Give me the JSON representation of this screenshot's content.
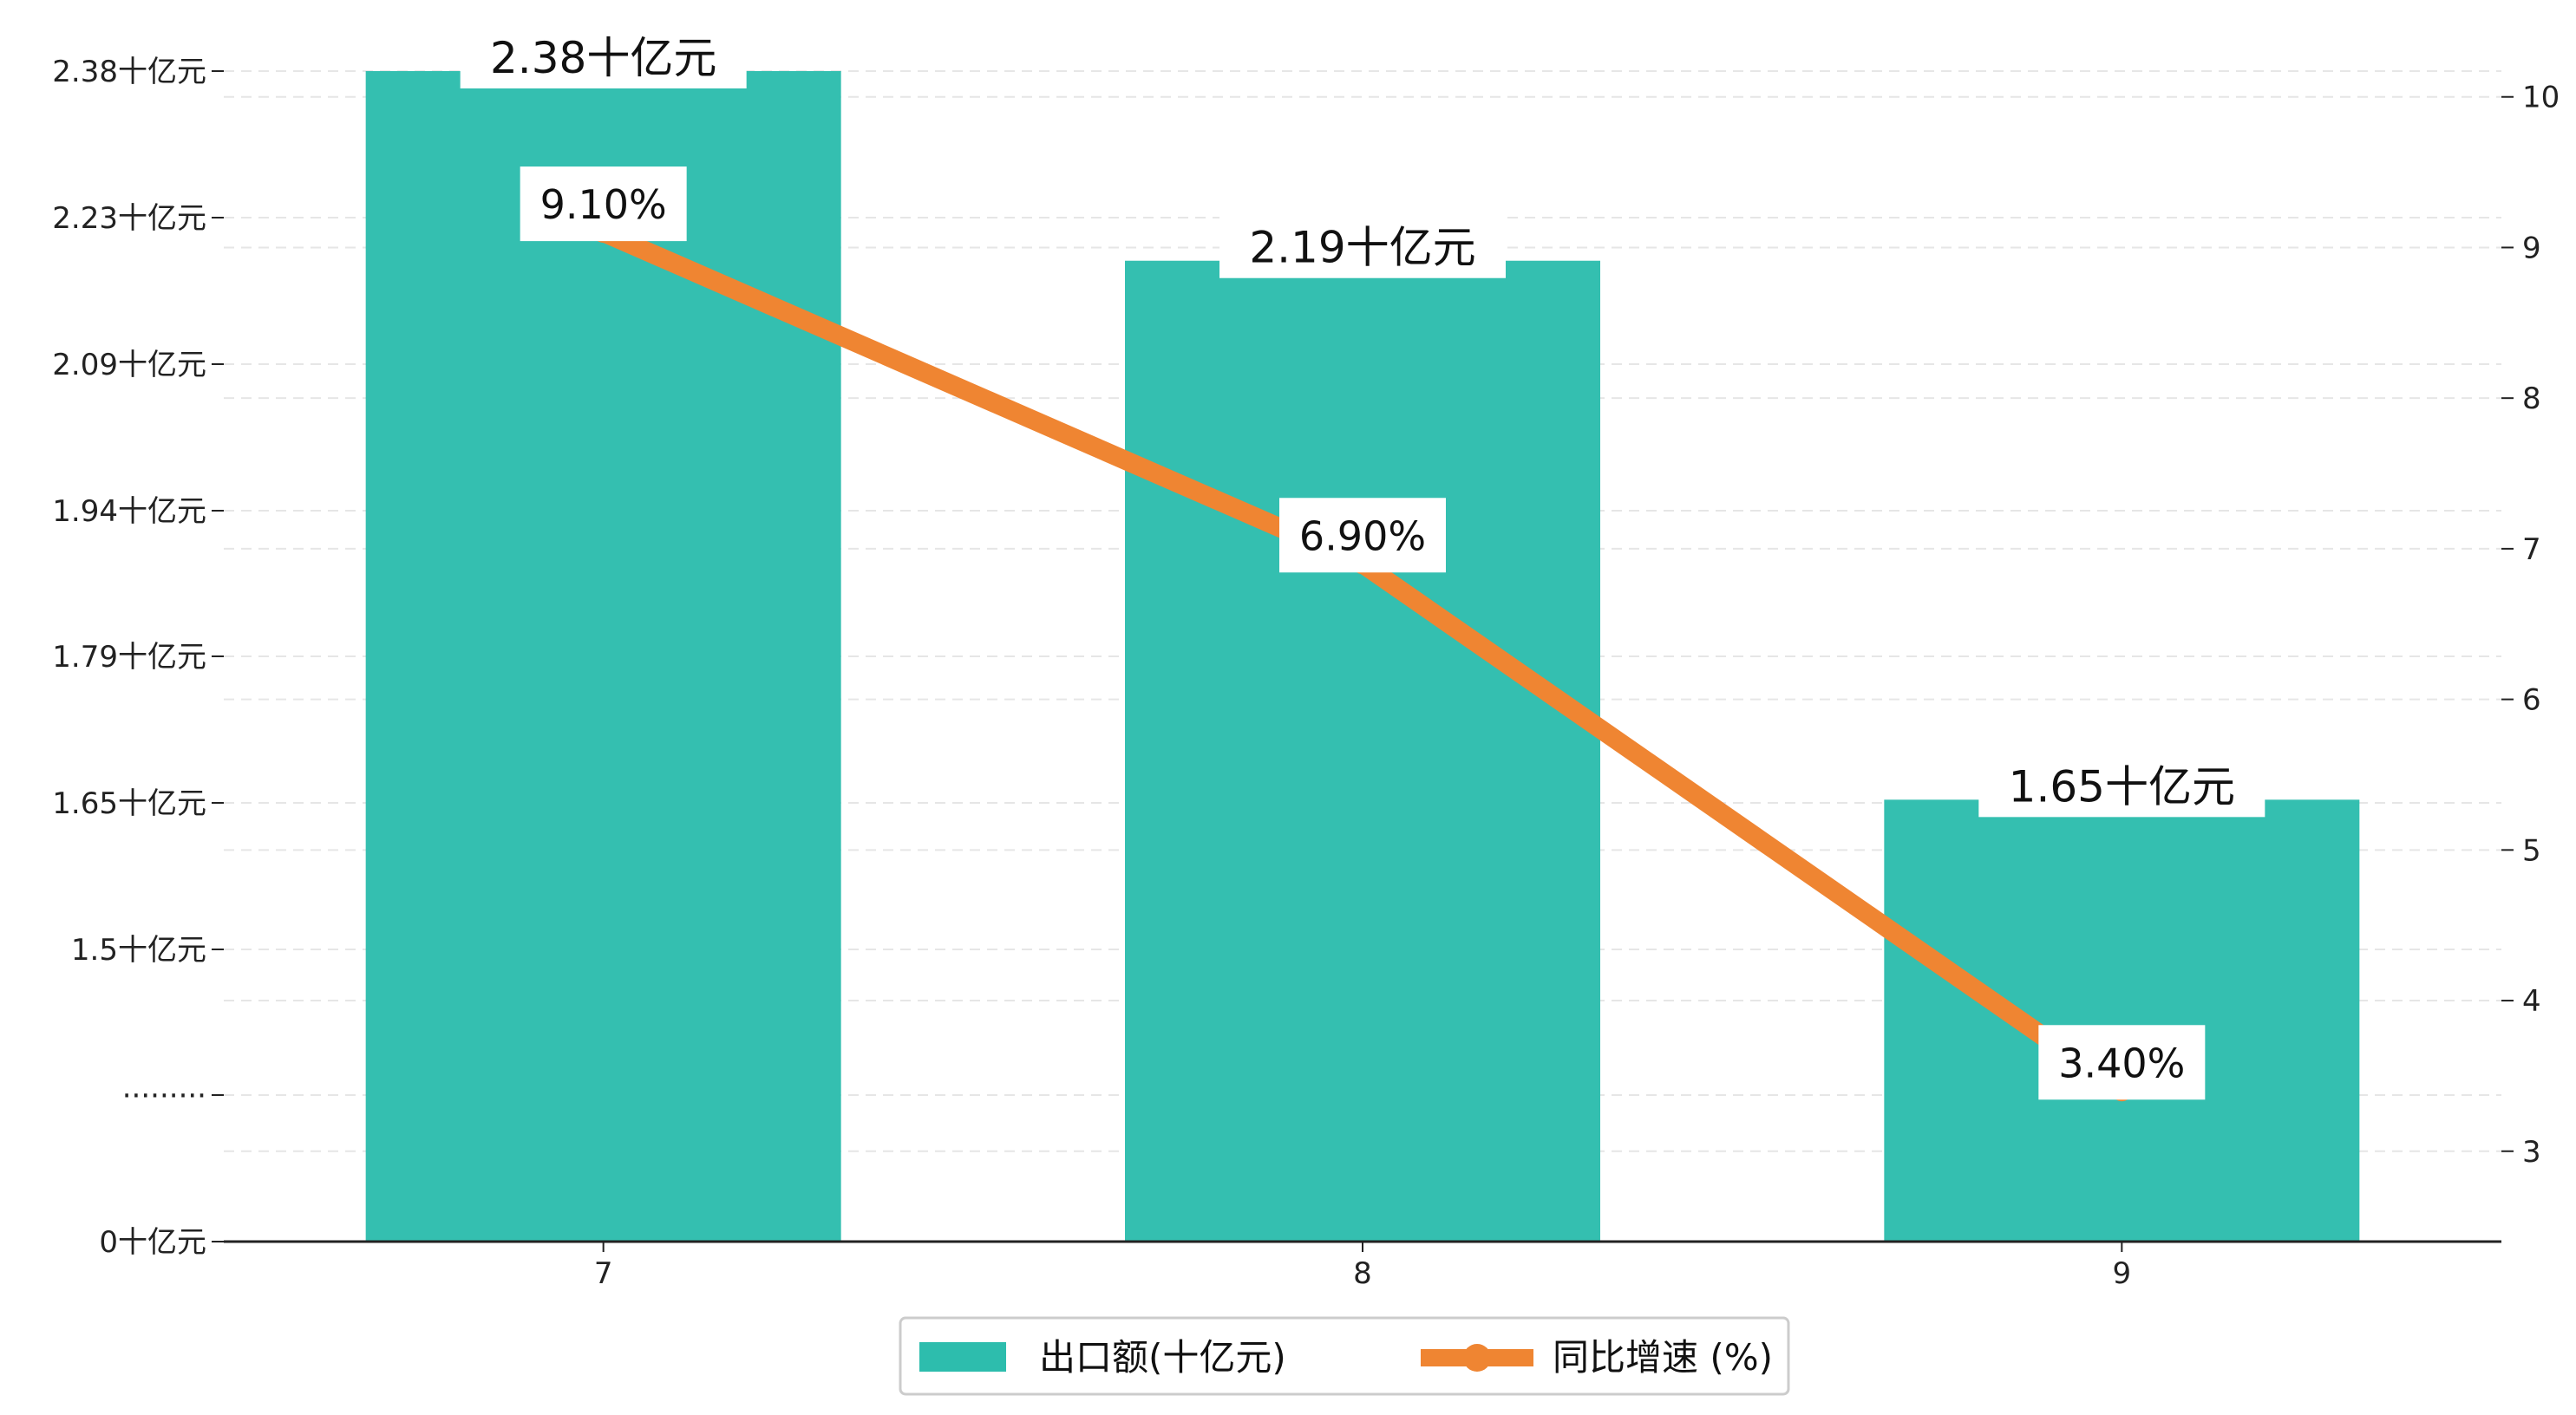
{
  "chart_data": {
    "type": "bar+line",
    "categories": [
      "7",
      "8",
      "9"
    ],
    "series": [
      {
        "name": "出口额(十亿元)",
        "type": "bar",
        "axis": "left",
        "values": [
          2.38,
          2.19,
          1.65
        ],
        "labels": [
          "2.38十亿元",
          "2.19十亿元",
          "1.65十亿元"
        ]
      },
      {
        "name": "同比增速 (%)",
        "type": "line",
        "axis": "right",
        "values": [
          9.1,
          6.9,
          3.4
        ],
        "labels": [
          "9.10%",
          "6.90%",
          "3.40%"
        ]
      }
    ],
    "left_axis": {
      "broken": true,
      "ticks": [
        "0十亿元",
        "·········",
        "1.5十亿元",
        "1.65十亿元",
        "1.79十亿元",
        "1.94十亿元",
        "2.09十亿元",
        "2.23十亿元",
        "2.38十亿元"
      ]
    },
    "right_axis": {
      "ylim": [
        2.4,
        10.2
      ],
      "ticks": [
        "3",
        "4",
        "5",
        "6",
        "7",
        "8",
        "9",
        "10"
      ]
    },
    "grid": "horizontal dashed",
    "legend_position": "bottom-center",
    "colors": {
      "bar": "#2dbdad",
      "line": "#ef8532",
      "axis": "#222222",
      "grid": "#e6e6e6"
    }
  }
}
